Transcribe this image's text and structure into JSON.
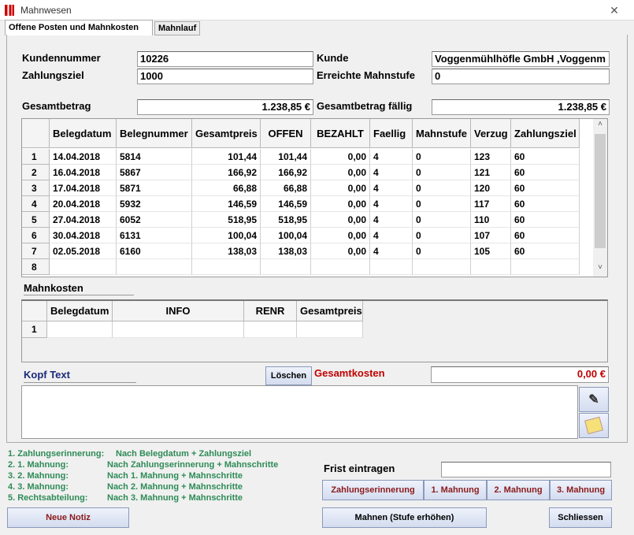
{
  "window": {
    "title": "Mahnwesen"
  },
  "tabs": [
    "Offene Posten  und Mahnkosten",
    "Mahnlauf"
  ],
  "fields": [
    {
      "label": "Kundennummer",
      "value": "10226"
    },
    {
      "label": "Zahlungsziel",
      "value": "1000"
    },
    {
      "label": "Kunde",
      "value": "Voggenmühlhöfle GmbH  ,Voggenm"
    },
    {
      "label": "Erreichte Mahnstufe",
      "value": "0"
    },
    {
      "label": "Gesamtbetrag",
      "value": "1.238,85 €"
    },
    {
      "label": "Gesamtbetrag fällig",
      "value": "1.238,85 €"
    }
  ],
  "posten": {
    "columns": [
      "Belegdatum",
      "Belegnummer",
      "Gesamtpreis",
      "OFFEN",
      "BEZAHLT",
      "Faellig",
      "Mahnstufe",
      "Verzug",
      "Zahlungsziel"
    ],
    "row_numbers": [
      "1",
      "2",
      "3",
      "4",
      "5",
      "6",
      "7",
      "8"
    ],
    "rows": [
      [
        "14.04.2018",
        "5814",
        "101,44",
        "101,44",
        "0,00",
        "4",
        "0",
        "123",
        "60"
      ],
      [
        "16.04.2018",
        "5867",
        "166,92",
        "166,92",
        "0,00",
        "4",
        "0",
        "121",
        "60"
      ],
      [
        "17.04.2018",
        "5871",
        "66,88",
        "66,88",
        "0,00",
        "4",
        "0",
        "120",
        "60"
      ],
      [
        "20.04.2018",
        "5932",
        "146,59",
        "146,59",
        "0,00",
        "4",
        "0",
        "117",
        "60"
      ],
      [
        "27.04.2018",
        "6052",
        "518,95",
        "518,95",
        "0,00",
        "4",
        "0",
        "110",
        "60"
      ],
      [
        "30.04.2018",
        "6131",
        "100,04",
        "100,04",
        "0,00",
        "4",
        "0",
        "107",
        "60"
      ],
      [
        "02.05.2018",
        "6160",
        "138,03",
        "138,03",
        "0,00",
        "4",
        "0",
        "105",
        "60"
      ]
    ]
  },
  "mahnkosten": {
    "title": "Mahnkosten",
    "columns": [
      "Belegdatum",
      "INFO",
      "RENR",
      "Gesamtpreis"
    ],
    "row_numbers": [
      "1"
    ]
  },
  "kopf_text": {
    "label": "Kopf Text",
    "delete_button": "Löschen"
  },
  "gesamtkosten": {
    "label": "Gesamtkosten",
    "value": "0,00 €"
  },
  "legend": [
    [
      "1.  Zahlungserinnerung:",
      "Nach Belegdatum + Zahlungsziel"
    ],
    [
      "2.  1. Mahnung:",
      "Nach Zahlungserinnerung + Mahnschritte"
    ],
    [
      "3.  2. Mahnung:",
      "Nach 1. Mahnung + Mahnschritte"
    ],
    [
      "4.  3. Mahnung:",
      "Nach 2. Mahnung + Mahnschritte"
    ],
    [
      "5.  Rechtsabteilung:",
      "Nach 3. Mahnung + Mahnschritte"
    ]
  ],
  "frist": {
    "label": "Frist eintragen"
  },
  "level_buttons": [
    "Zahlungserinnerung",
    "1. Mahnung",
    "2. Mahnung",
    "3. Mahnung"
  ],
  "buttons": {
    "note": "Neue Notiz",
    "dunning": "Mahnen (Stufe erhöhen)",
    "close": "Schliessen"
  }
}
